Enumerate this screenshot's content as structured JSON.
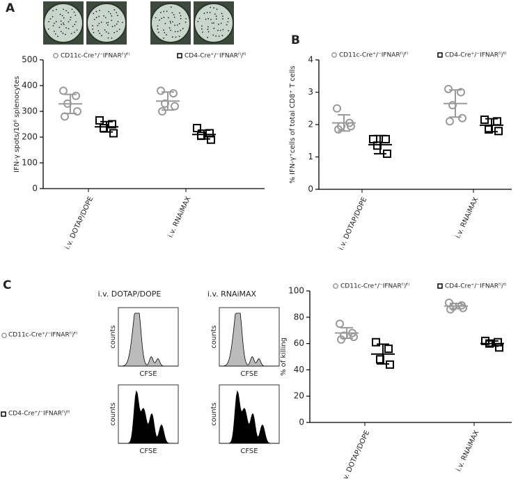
{
  "chart_data": [
    {
      "type": "dot",
      "ylabel": "IFN-γ spots/10⁶ splenocytes",
      "categories": [
        "i.v. DOTAP/DOPE",
        "i.v. RNAiMAX"
      ],
      "ylim": [
        0,
        500
      ],
      "yticks": [
        0,
        100,
        200,
        300,
        400,
        500
      ],
      "series": [
        {
          "name": "CD11c-Cre⁺/⁻IFNARᶠˡ/ᶠˡ",
          "color": "#999999",
          "marker": "circle",
          "values": [
            [
              380,
              360,
              330,
              300,
              280
            ],
            [
              380,
              370,
              330,
              320,
              300
            ]
          ],
          "mean": [
            329,
            340
          ],
          "sd": [
            37,
            35
          ]
        },
        {
          "name": "CD4-Cre⁺/⁻IFNARᶠˡ/ᶠˡ",
          "color": "#000000",
          "marker": "square",
          "values": [
            [
              265,
              250,
              235,
              215
            ],
            [
              235,
              215,
              205,
              190
            ]
          ],
          "mean": [
            240,
            210
          ],
          "sd": [
            20,
            17
          ]
        }
      ]
    },
    {
      "type": "dot",
      "ylabel": "% IFN-γ⁺cells of total CD8⁺ T cells",
      "categories": [
        "i.v. DOTAP/DOPE",
        "i.v. RNAiMAX"
      ],
      "ylim": [
        0,
        4
      ],
      "yticks": [
        0,
        1,
        2,
        3,
        4
      ],
      "series": [
        {
          "name": "CD11c-Cre⁺/⁻IFNARᶠˡ/ᶠˡ",
          "color": "#999999",
          "marker": "circle",
          "values": [
            [
              2.5,
              2.05,
              1.95,
              1.95,
              1.85
            ],
            [
              3.1,
              3.0,
              2.6,
              2.2,
              2.1
            ]
          ],
          "mean": [
            2.05,
            2.65
          ],
          "sd": [
            0.25,
            0.42
          ]
        },
        {
          "name": "CD4-Cre⁺/⁻IFNARᶠˡ/ᶠˡ",
          "color": "#000000",
          "marker": "square",
          "values": [
            [
              1.55,
              1.55,
              1.35,
              1.1
            ],
            [
              2.15,
              2.1,
              1.85,
              1.8
            ]
          ],
          "mean": [
            1.38,
            1.98
          ],
          "sd": [
            0.28,
            0.2
          ]
        }
      ]
    },
    {
      "type": "dot",
      "ylabel": "% of killing",
      "categories": [
        "i.v. DOTAP/DOPE",
        "i.v. RNAiMAX"
      ],
      "ylim": [
        0,
        100
      ],
      "yticks": [
        0,
        20,
        40,
        60,
        80,
        100
      ],
      "series": [
        {
          "name": "CD11c-Cre⁺/⁻IFNARᶠˡ/ᶠˡ",
          "color": "#999999",
          "marker": "circle",
          "values": [
            [
              75,
              68,
              66,
              65,
              63
            ],
            [
              91,
              89,
              88,
              87,
              86
            ]
          ],
          "mean": [
            68,
            88.5
          ],
          "sd": [
            4,
            2
          ]
        },
        {
          "name": "CD4-Cre⁺/⁻IFNARᶠˡ/ᶠˡ",
          "color": "#000000",
          "marker": "square",
          "values": [
            [
              61,
              56,
              48,
              44
            ],
            [
              62,
              61,
              60,
              57
            ]
          ],
          "mean": [
            52,
            60
          ],
          "sd": [
            7.5,
            2
          ]
        }
      ]
    }
  ],
  "panels": {
    "labels": [
      "A",
      "B",
      "C"
    ],
    "histogram_columns": [
      "i.v. DOTAP/DOPE",
      "i.v. RNAiMAX"
    ],
    "histogram_rows": [
      "CD11c-Cre⁺/⁻IFNARᶠˡ/ᶠˡ",
      "CD4-Cre⁺/⁻IFNARᶠˡ/ᶠˡ"
    ],
    "histogram_ylabel": "counts",
    "histogram_xlabel": "CFSE"
  }
}
